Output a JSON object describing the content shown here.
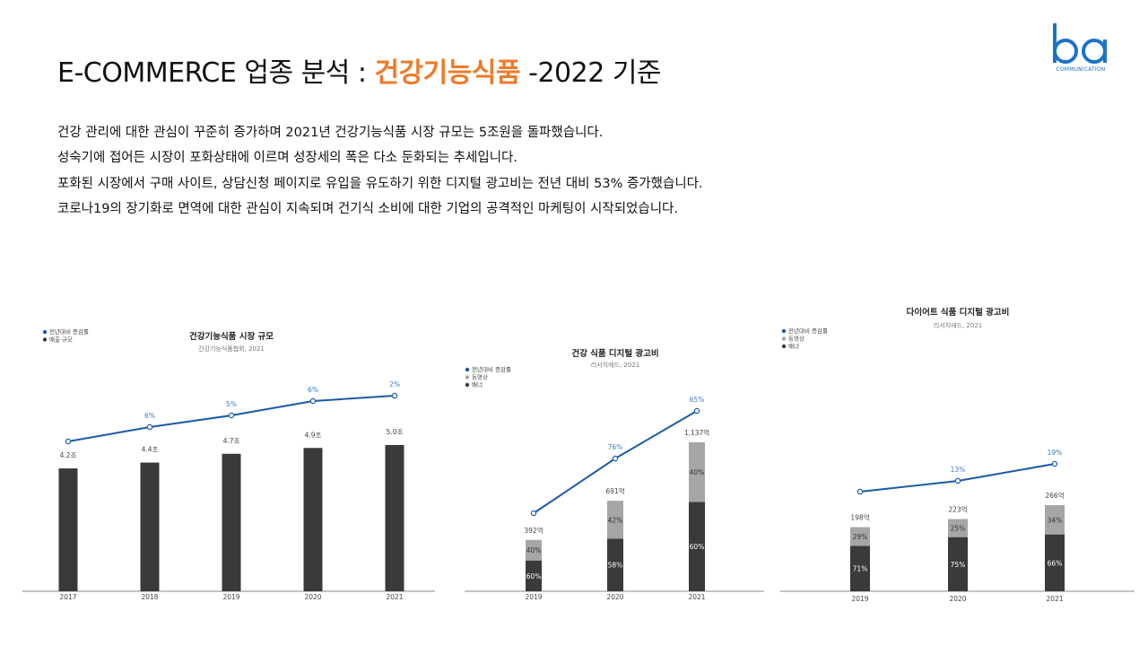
{
  "header": {
    "title_prefix": "E-COMMERCE 업종 분석 : ",
    "title_accent": "건강기능식품",
    "title_suffix": " -2022 기준",
    "logo_text": "ba",
    "logo_sub": "COMMUNICATION"
  },
  "description": [
    "건강 관리에 대한 관심이 꾸준히 증가하며 2021년 건강기능식품 시장 규모는 5조원을 돌파했습니다.",
    "성숙기에 접어든 시장이 포화상태에 이르며 성장세의 폭은 다소 둔화되는 추세입니다.",
    "포화된 시장에서 구매 사이트, 상담신청 페이지로 유입을 유도하기 위한 디지털 광고비는 전년 대비 53% 증가했습니다.",
    "코로나19의 장기화로 면역에 대한 관심이 지속되며 건기식 소비에 대한 기업의 공격적인 마케팅이 시작되었습니다."
  ],
  "colors": {
    "accent": "#ee7a2a",
    "line": "#1a5aa8",
    "bar_dark": "#3a3a3a",
    "bar_light": "#a6a6a6",
    "pct_text": "#3d7cc2",
    "logo": "#1a73c9"
  },
  "chart_data": [
    {
      "type": "bar",
      "title": "건강기능식품 시장 규모",
      "subtitle": "건강기능식품협회, 2021",
      "legend": [
        "전년대비 증감률",
        "매출 규모"
      ],
      "categories": [
        "2017",
        "2018",
        "2019",
        "2020",
        "2021"
      ],
      "values": [
        4.2,
        4.4,
        4.7,
        4.9,
        5.0
      ],
      "value_labels": [
        "4.2조",
        "4.4조",
        "4.7조",
        "4.9조",
        "5.0조"
      ],
      "growth": [
        null,
        6,
        5,
        6,
        2
      ],
      "growth_labels": [
        "",
        "6%",
        "5%",
        "6%",
        "2%"
      ]
    },
    {
      "type": "bar",
      "title": "건강 식품 디지털 광고비",
      "subtitle": "리서치애드, 2021",
      "legend": [
        "전년대비 증감률",
        "동영상",
        "배너"
      ],
      "categories": [
        "2019",
        "2020",
        "2021"
      ],
      "totals": [
        392,
        691,
        1137
      ],
      "total_labels": [
        "392억",
        "691억",
        "1,137억"
      ],
      "series": [
        {
          "name": "배너",
          "share": [
            60,
            58,
            60
          ],
          "labels": [
            "60%",
            "58%",
            "60%"
          ]
        },
        {
          "name": "동영상",
          "share": [
            40,
            42,
            40
          ],
          "labels": [
            "40%",
            "42%",
            "40%"
          ]
        }
      ],
      "growth": [
        null,
        76,
        65
      ],
      "growth_labels": [
        "",
        "76%",
        "65%"
      ]
    },
    {
      "type": "bar",
      "title": "다이어트 식품 디지털 광고비",
      "subtitle": "리서치애드, 2021",
      "legend": [
        "전년대비 증감률",
        "동영상",
        "배너"
      ],
      "categories": [
        "2019",
        "2020",
        "2021"
      ],
      "totals": [
        198,
        223,
        266
      ],
      "total_labels": [
        "198억",
        "223억",
        "266억"
      ],
      "series": [
        {
          "name": "배너",
          "share": [
            71,
            75,
            66
          ],
          "labels": [
            "71%",
            "75%",
            "66%"
          ]
        },
        {
          "name": "동영상",
          "share": [
            29,
            25,
            34
          ],
          "labels": [
            "29%",
            "25%",
            "34%"
          ]
        }
      ],
      "growth": [
        null,
        13,
        19
      ],
      "growth_labels": [
        "",
        "13%",
        "19%"
      ]
    }
  ]
}
